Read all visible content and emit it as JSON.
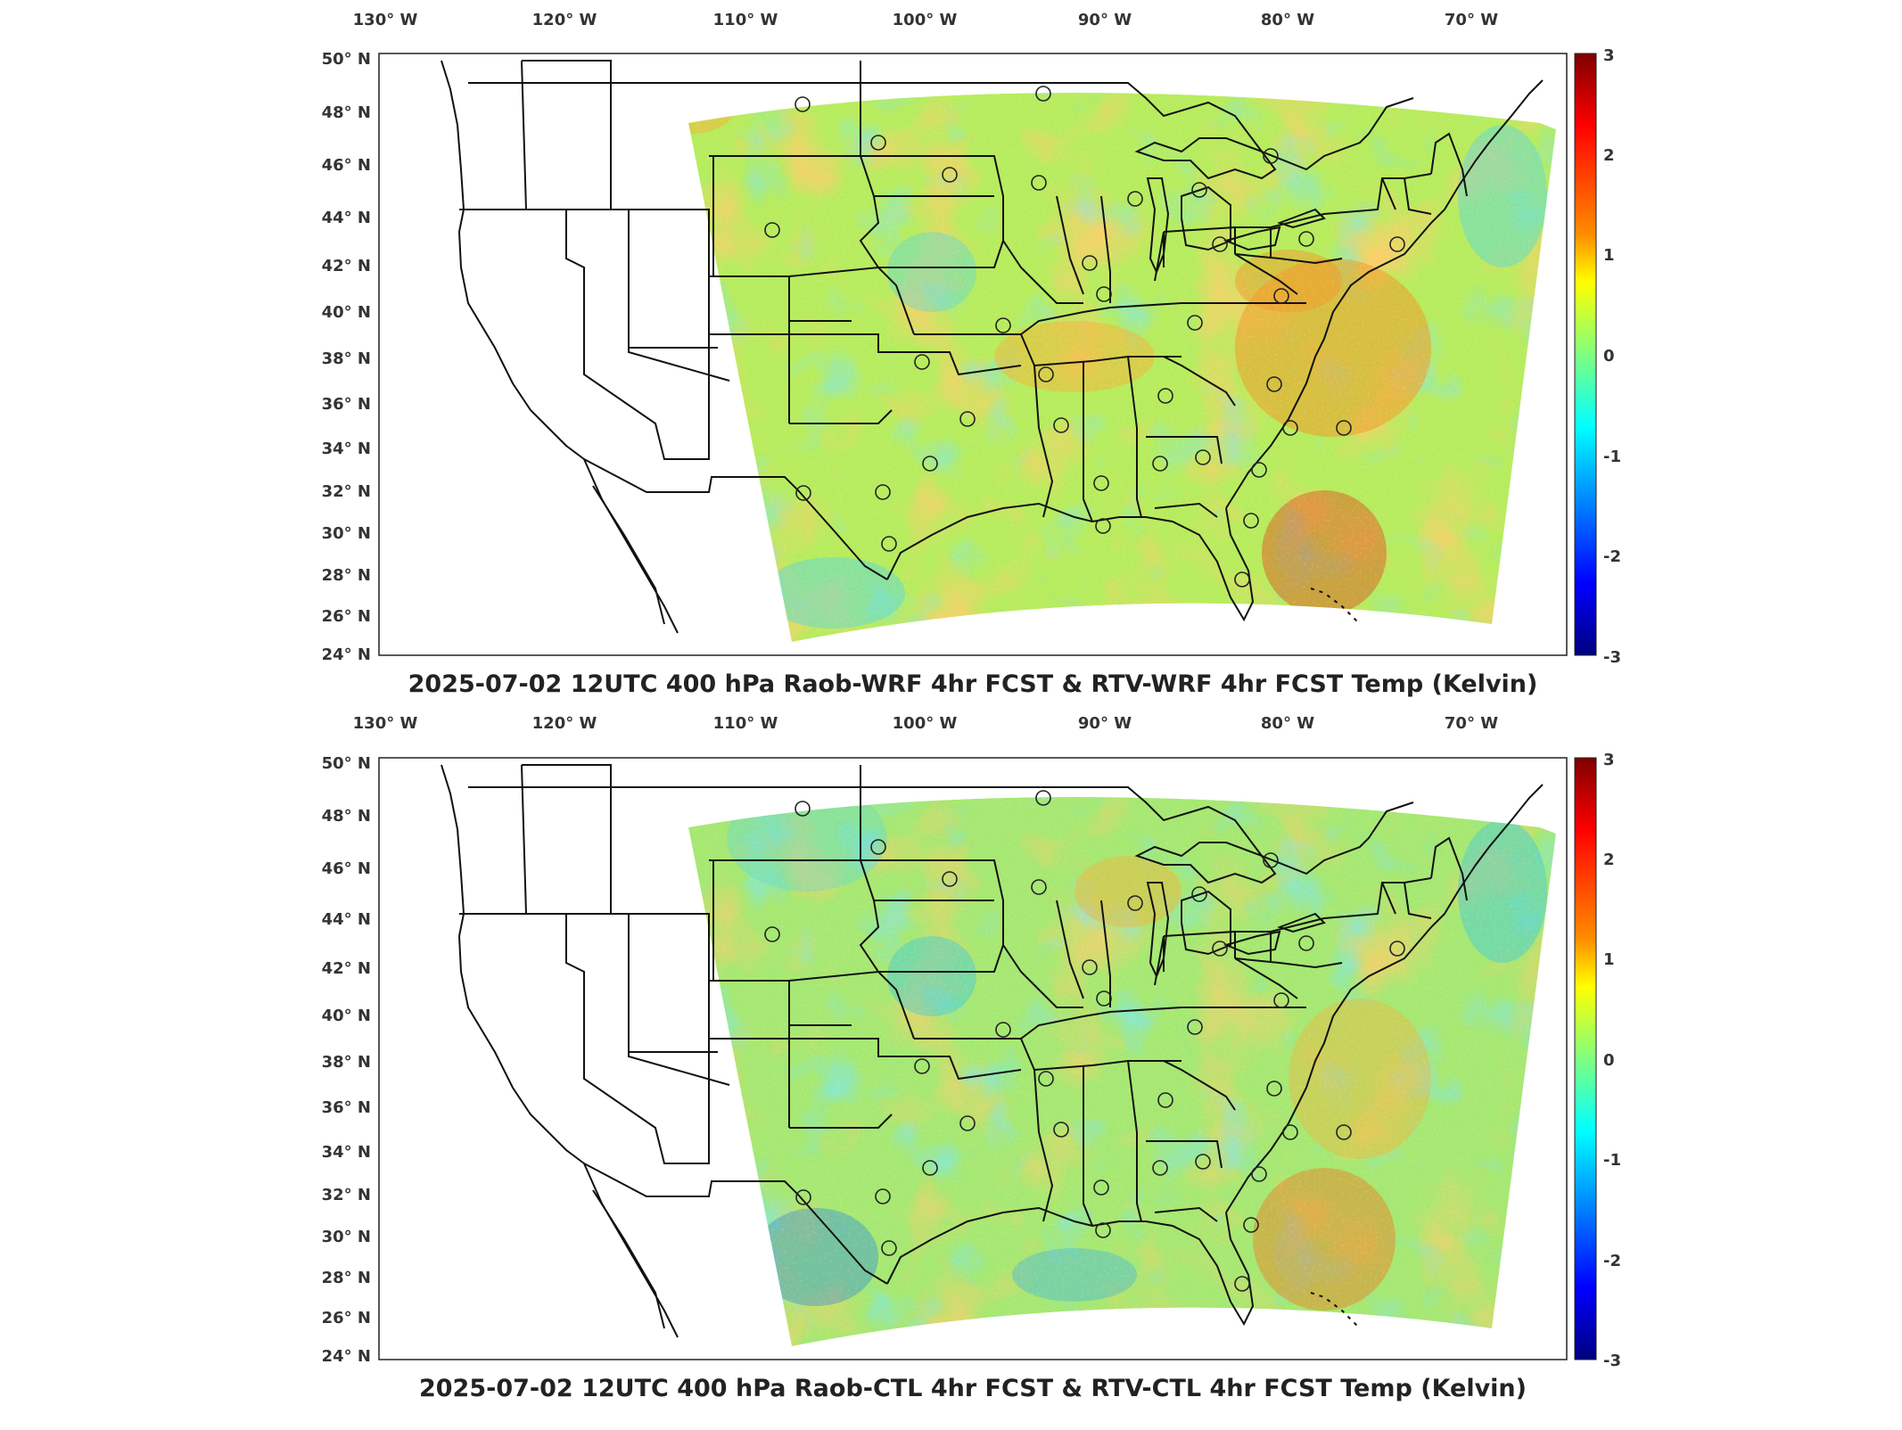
{
  "panels": [
    {
      "title": "2025-07-02 12UTC 400 hPa Raob-WRF 4hr FCST & RTV-WRF 4hr FCST Temp (Kelvin)",
      "lon_labels": [
        "130° W",
        "120° W",
        "110° W",
        "100° W",
        "90° W",
        "80° W",
        "70° W"
      ],
      "lat_labels": [
        "50° N",
        "48° N",
        "46° N",
        "44° N",
        "42° N",
        "40° N",
        "38° N",
        "36° N",
        "34° N",
        "32° N",
        "30° N",
        "28° N",
        "26° N",
        "24° N"
      ],
      "colorbar_ticks": [
        "3",
        "2",
        "1",
        "0",
        "-1",
        "-2",
        "-3"
      ]
    },
    {
      "title": "2025-07-02 12UTC 400 hPa Raob-CTL 4hr FCST & RTV-CTL 4hr FCST Temp (Kelvin)",
      "lon_labels": [
        "130° W",
        "120° W",
        "110° W",
        "100° W",
        "90° W",
        "80° W",
        "70° W"
      ],
      "lat_labels": [
        "50° N",
        "48° N",
        "46° N",
        "44° N",
        "42° N",
        "40° N",
        "38° N",
        "36° N",
        "34° N",
        "32° N",
        "30° N",
        "28° N",
        "26° N",
        "24° N"
      ],
      "colorbar_ticks": [
        "3",
        "2",
        "1",
        "0",
        "-1",
        "-2",
        "-3"
      ]
    }
  ],
  "colors": {
    "field_base": "#a9e86a",
    "warm_anomaly": "#f5a623",
    "cool_anomaly": "#3fc9e0",
    "colorbar": [
      "#7f0000",
      "#ff0000",
      "#ff8c00",
      "#ffff00",
      "#7fff7f",
      "#00ffff",
      "#0080ff",
      "#0000ff",
      "#00007f"
    ]
  },
  "icons": {
    "raob_station": "station-circle-icon"
  }
}
